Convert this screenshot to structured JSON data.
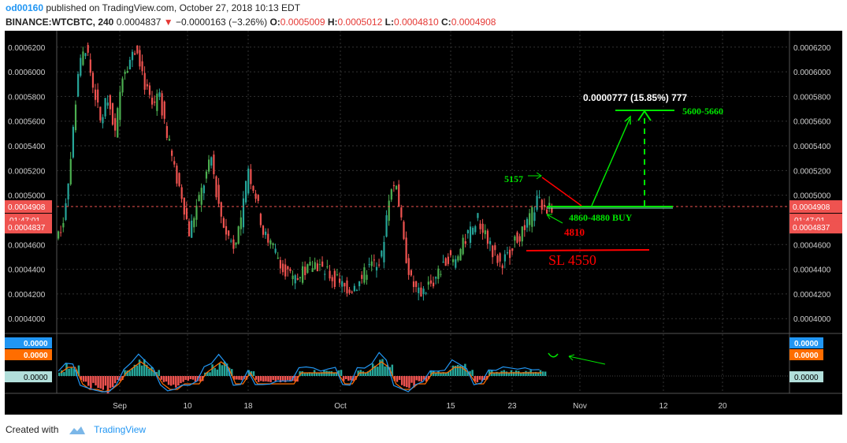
{
  "header": {
    "author": "od00160",
    "published": "published on TradingView.com, October 27, 2018 10:13 EDT",
    "symbol": "BINANCE:WTCBTC, 240",
    "last": "0.0004837",
    "arrow": "▼",
    "change": "−0.0000163 (−3.26%)",
    "o_label": "O:",
    "o_val": "0.0005009",
    "h_label": "H:",
    "h_val": "0.0005012",
    "l_label": "L:",
    "l_val": "0.0004810",
    "c_label": "C:",
    "c_val": "0.0004908"
  },
  "footer": {
    "created": "Created with",
    "brand": "TradingView"
  },
  "chart_data": {
    "type": "candlestick",
    "y_ticks": [
      "0.0006200",
      "0.0006000",
      "0.0005800",
      "0.0005600",
      "0.0005400",
      "0.0005200",
      "0.0005000",
      "0.0004600",
      "0.0004400",
      "0.0004200",
      "0.0004000"
    ],
    "ylim": [
      0.000388,
      0.000632
    ],
    "x_ticks": [
      "Sep",
      "10",
      "18",
      "Oct",
      "15",
      "23",
      "Nov",
      "12",
      "20"
    ],
    "price_labels": {
      "current": "0.0004908",
      "countdown": "01:47:01",
      "last": "0.0004837"
    },
    "price_series": [
      0.000465,
      0.00048,
      0.00053,
      0.0006,
      0.00062,
      0.00059,
      0.00056,
      0.00058,
      0.00055,
      0.0006,
      0.00061,
      0.00062,
      0.00059,
      0.00057,
      0.00058,
      0.00055,
      0.00052,
      0.0005,
      0.00047,
      0.00049,
      0.00051,
      0.00053,
      0.00049,
      0.00047,
      0.00046,
      0.00048,
      0.00052,
      0.0005,
      0.00047,
      0.00046,
      0.00045,
      0.00044,
      0.00043,
      0.000435,
      0.00044,
      0.000445,
      0.00044,
      0.000435,
      0.00043,
      0.000425,
      0.000425,
      0.00043,
      0.00044,
      0.000445,
      0.00045,
      0.0005,
      0.00051,
      0.00046,
      0.00043,
      0.00042,
      0.000425,
      0.00043,
      0.00044,
      0.00045,
      0.000445,
      0.00046,
      0.00047,
      0.00048,
      0.00047,
      0.000455,
      0.000445,
      0.00045,
      0.000465,
      0.00047,
      0.00048,
      0.000495,
      0.00049
    ],
    "annotations": {
      "measure": "0.0000777 (15.85%) 777",
      "target": "5600-5660",
      "high": "5157",
      "buy": "4860-4880 BUY",
      "support": "4810",
      "stop": "SL   4550"
    },
    "indicator": {
      "labels": [
        "0.0000",
        "0.0000",
        "0.0000"
      ],
      "histogram": [
        1,
        2,
        2,
        -1,
        -2,
        -2,
        -3,
        -2,
        -1,
        1,
        2,
        3,
        2,
        1,
        -1,
        -2,
        -2,
        -1,
        -1,
        -1,
        1,
        2,
        3,
        2,
        -1,
        -1,
        1,
        -1,
        -1,
        -1,
        -1,
        -1,
        -1,
        1,
        1,
        1,
        1,
        1,
        1,
        -1,
        -1,
        1,
        1,
        2,
        3,
        2,
        -1,
        -2,
        -2,
        -1,
        -1,
        1,
        1,
        1,
        2,
        2,
        1,
        -1,
        -1,
        1,
        1,
        1,
        1,
        1,
        1,
        1,
        1
      ]
    },
    "colors": {
      "up": "#26a69a",
      "up_green": "#4caf50",
      "down": "#ef5350",
      "accent_green": "#00e600",
      "accent_red": "#ff0000",
      "label_blue": "#2196f3",
      "label_orange": "#ff6d00"
    }
  }
}
